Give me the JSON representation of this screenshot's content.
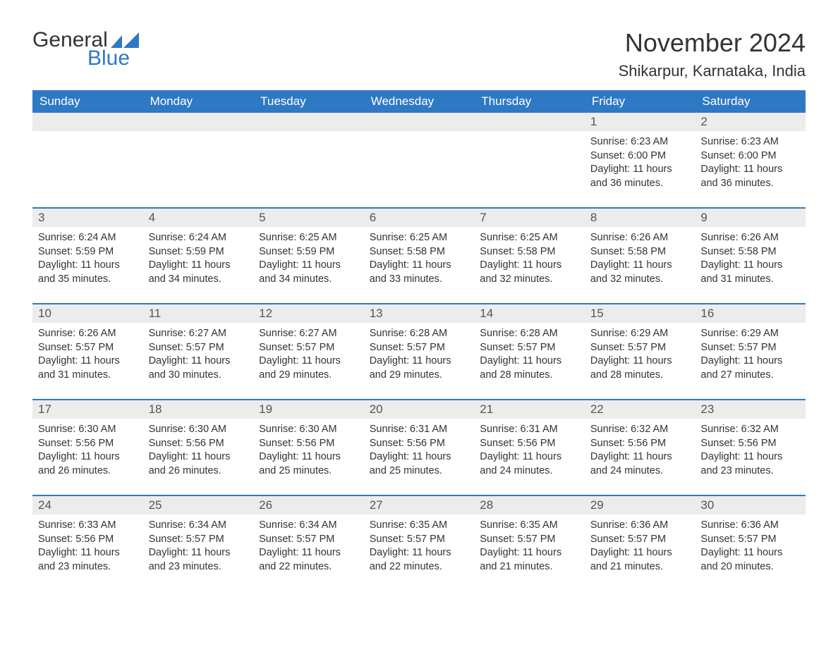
{
  "brand": {
    "word1": "General",
    "word2": "Blue"
  },
  "colors": {
    "accent": "#2f79c4",
    "header_bg": "#2f79c4",
    "header_text": "#ffffff",
    "daynum_bg": "#ececec",
    "daynum_text": "#555555",
    "body_text": "#333333",
    "page_bg": "#ffffff",
    "row_border": "#2f79c4"
  },
  "typography": {
    "title_fontsize": 36,
    "location_fontsize": 22,
    "dow_fontsize": 17,
    "daynum_fontsize": 17,
    "body_fontsize": 14.5
  },
  "title": {
    "month": "November 2024",
    "location": "Shikarpur, Karnataka, India"
  },
  "days_of_week": [
    "Sunday",
    "Monday",
    "Tuesday",
    "Wednesday",
    "Thursday",
    "Friday",
    "Saturday"
  ],
  "weeks": [
    [
      null,
      null,
      null,
      null,
      null,
      {
        "n": "1",
        "sunrise": "Sunrise: 6:23 AM",
        "sunset": "Sunset: 6:00 PM",
        "daylight": "Daylight: 11 hours and 36 minutes."
      },
      {
        "n": "2",
        "sunrise": "Sunrise: 6:23 AM",
        "sunset": "Sunset: 6:00 PM",
        "daylight": "Daylight: 11 hours and 36 minutes."
      }
    ],
    [
      {
        "n": "3",
        "sunrise": "Sunrise: 6:24 AM",
        "sunset": "Sunset: 5:59 PM",
        "daylight": "Daylight: 11 hours and 35 minutes."
      },
      {
        "n": "4",
        "sunrise": "Sunrise: 6:24 AM",
        "sunset": "Sunset: 5:59 PM",
        "daylight": "Daylight: 11 hours and 34 minutes."
      },
      {
        "n": "5",
        "sunrise": "Sunrise: 6:25 AM",
        "sunset": "Sunset: 5:59 PM",
        "daylight": "Daylight: 11 hours and 34 minutes."
      },
      {
        "n": "6",
        "sunrise": "Sunrise: 6:25 AM",
        "sunset": "Sunset: 5:58 PM",
        "daylight": "Daylight: 11 hours and 33 minutes."
      },
      {
        "n": "7",
        "sunrise": "Sunrise: 6:25 AM",
        "sunset": "Sunset: 5:58 PM",
        "daylight": "Daylight: 11 hours and 32 minutes."
      },
      {
        "n": "8",
        "sunrise": "Sunrise: 6:26 AM",
        "sunset": "Sunset: 5:58 PM",
        "daylight": "Daylight: 11 hours and 32 minutes."
      },
      {
        "n": "9",
        "sunrise": "Sunrise: 6:26 AM",
        "sunset": "Sunset: 5:58 PM",
        "daylight": "Daylight: 11 hours and 31 minutes."
      }
    ],
    [
      {
        "n": "10",
        "sunrise": "Sunrise: 6:26 AM",
        "sunset": "Sunset: 5:57 PM",
        "daylight": "Daylight: 11 hours and 31 minutes."
      },
      {
        "n": "11",
        "sunrise": "Sunrise: 6:27 AM",
        "sunset": "Sunset: 5:57 PM",
        "daylight": "Daylight: 11 hours and 30 minutes."
      },
      {
        "n": "12",
        "sunrise": "Sunrise: 6:27 AM",
        "sunset": "Sunset: 5:57 PM",
        "daylight": "Daylight: 11 hours and 29 minutes."
      },
      {
        "n": "13",
        "sunrise": "Sunrise: 6:28 AM",
        "sunset": "Sunset: 5:57 PM",
        "daylight": "Daylight: 11 hours and 29 minutes."
      },
      {
        "n": "14",
        "sunrise": "Sunrise: 6:28 AM",
        "sunset": "Sunset: 5:57 PM",
        "daylight": "Daylight: 11 hours and 28 minutes."
      },
      {
        "n": "15",
        "sunrise": "Sunrise: 6:29 AM",
        "sunset": "Sunset: 5:57 PM",
        "daylight": "Daylight: 11 hours and 28 minutes."
      },
      {
        "n": "16",
        "sunrise": "Sunrise: 6:29 AM",
        "sunset": "Sunset: 5:57 PM",
        "daylight": "Daylight: 11 hours and 27 minutes."
      }
    ],
    [
      {
        "n": "17",
        "sunrise": "Sunrise: 6:30 AM",
        "sunset": "Sunset: 5:56 PM",
        "daylight": "Daylight: 11 hours and 26 minutes."
      },
      {
        "n": "18",
        "sunrise": "Sunrise: 6:30 AM",
        "sunset": "Sunset: 5:56 PM",
        "daylight": "Daylight: 11 hours and 26 minutes."
      },
      {
        "n": "19",
        "sunrise": "Sunrise: 6:30 AM",
        "sunset": "Sunset: 5:56 PM",
        "daylight": "Daylight: 11 hours and 25 minutes."
      },
      {
        "n": "20",
        "sunrise": "Sunrise: 6:31 AM",
        "sunset": "Sunset: 5:56 PM",
        "daylight": "Daylight: 11 hours and 25 minutes."
      },
      {
        "n": "21",
        "sunrise": "Sunrise: 6:31 AM",
        "sunset": "Sunset: 5:56 PM",
        "daylight": "Daylight: 11 hours and 24 minutes."
      },
      {
        "n": "22",
        "sunrise": "Sunrise: 6:32 AM",
        "sunset": "Sunset: 5:56 PM",
        "daylight": "Daylight: 11 hours and 24 minutes."
      },
      {
        "n": "23",
        "sunrise": "Sunrise: 6:32 AM",
        "sunset": "Sunset: 5:56 PM",
        "daylight": "Daylight: 11 hours and 23 minutes."
      }
    ],
    [
      {
        "n": "24",
        "sunrise": "Sunrise: 6:33 AM",
        "sunset": "Sunset: 5:56 PM",
        "daylight": "Daylight: 11 hours and 23 minutes."
      },
      {
        "n": "25",
        "sunrise": "Sunrise: 6:34 AM",
        "sunset": "Sunset: 5:57 PM",
        "daylight": "Daylight: 11 hours and 23 minutes."
      },
      {
        "n": "26",
        "sunrise": "Sunrise: 6:34 AM",
        "sunset": "Sunset: 5:57 PM",
        "daylight": "Daylight: 11 hours and 22 minutes."
      },
      {
        "n": "27",
        "sunrise": "Sunrise: 6:35 AM",
        "sunset": "Sunset: 5:57 PM",
        "daylight": "Daylight: 11 hours and 22 minutes."
      },
      {
        "n": "28",
        "sunrise": "Sunrise: 6:35 AM",
        "sunset": "Sunset: 5:57 PM",
        "daylight": "Daylight: 11 hours and 21 minutes."
      },
      {
        "n": "29",
        "sunrise": "Sunrise: 6:36 AM",
        "sunset": "Sunset: 5:57 PM",
        "daylight": "Daylight: 11 hours and 21 minutes."
      },
      {
        "n": "30",
        "sunrise": "Sunrise: 6:36 AM",
        "sunset": "Sunset: 5:57 PM",
        "daylight": "Daylight: 11 hours and 20 minutes."
      }
    ]
  ]
}
